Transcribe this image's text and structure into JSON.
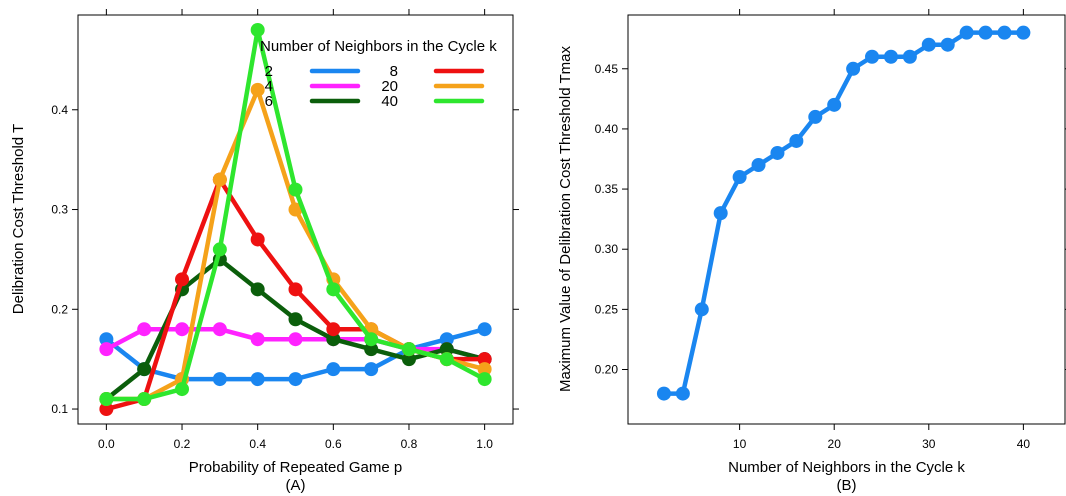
{
  "chart_data": [
    {
      "type": "line",
      "caption": "(A)",
      "xlabel": "Probability of Repeated Game p",
      "ylabel": "Delibration Cost Threshold T",
      "xlim": [
        -0.075,
        1.075
      ],
      "ylim": [
        0.085,
        0.495
      ],
      "xticks": [
        "0.0",
        "0.2",
        "0.4",
        "0.6",
        "0.8",
        "1.0"
      ],
      "yticks": [
        "0.1",
        "0.2",
        "0.3",
        "0.4"
      ],
      "x": [
        0.0,
        0.1,
        0.2,
        0.3,
        0.4,
        0.5,
        0.6,
        0.7,
        0.8,
        0.9,
        1.0
      ],
      "legend": {
        "title": "Number of Neighbors in the Cycle k",
        "placement": "top-right"
      },
      "series": [
        {
          "name": "2",
          "color": "#1a86f0",
          "values": [
            0.17,
            0.14,
            0.13,
            0.13,
            0.13,
            0.13,
            0.14,
            0.14,
            0.16,
            0.17,
            0.18
          ]
        },
        {
          "name": "4",
          "color": "#ff22ff",
          "values": [
            0.16,
            0.18,
            0.18,
            0.18,
            0.17,
            0.17,
            0.17,
            0.17,
            0.16,
            0.16,
            0.15
          ]
        },
        {
          "name": "6",
          "color": "#0b5e0b",
          "values": [
            0.11,
            0.14,
            0.22,
            0.25,
            0.22,
            0.19,
            0.17,
            0.16,
            0.15,
            0.16,
            0.15
          ]
        },
        {
          "name": "8",
          "color": "#ee1111",
          "values": [
            0.1,
            0.11,
            0.23,
            0.33,
            0.27,
            0.22,
            0.18,
            0.18,
            0.16,
            0.15,
            0.15
          ]
        },
        {
          "name": "20",
          "color": "#f5a21a",
          "values": [
            0.11,
            0.11,
            0.13,
            0.33,
            0.42,
            0.3,
            0.23,
            0.18,
            0.16,
            0.15,
            0.14
          ]
        },
        {
          "name": "40",
          "color": "#2ee62e",
          "values": [
            0.11,
            0.11,
            0.12,
            0.26,
            0.48,
            0.32,
            0.22,
            0.17,
            0.16,
            0.15,
            0.13
          ]
        }
      ]
    },
    {
      "type": "line",
      "caption": "(B)",
      "xlabel": "Number of Neighbors in the Cycle k",
      "ylabel": "Maximum Value of Delibration Cost Threshold Tmax",
      "xlim": [
        -1.8,
        44.4
      ],
      "ylim": [
        0.1547,
        0.4947
      ],
      "xticks": [
        "10",
        "20",
        "30",
        "40"
      ],
      "yticks": [
        "0.20",
        "0.25",
        "0.30",
        "0.35",
        "0.40",
        "0.45"
      ],
      "color": "#1a86f0",
      "x": [
        2,
        4,
        6,
        8,
        10,
        12,
        14,
        16,
        18,
        20,
        22,
        24,
        26,
        28,
        30,
        32,
        34,
        36,
        38,
        40
      ],
      "values": [
        0.18,
        0.18,
        0.25,
        0.33,
        0.36,
        0.37,
        0.38,
        0.39,
        0.41,
        0.42,
        0.45,
        0.46,
        0.46,
        0.46,
        0.47,
        0.47,
        0.48,
        0.48,
        0.48,
        0.48
      ]
    }
  ]
}
